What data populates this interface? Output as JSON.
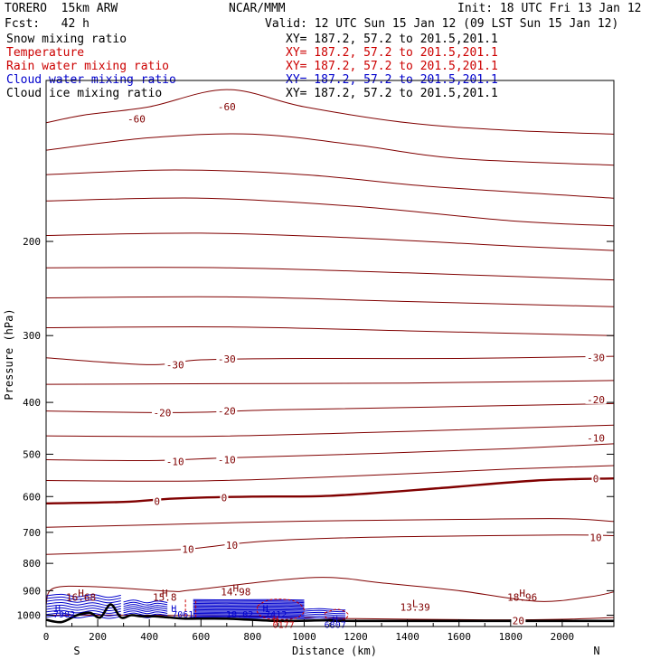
{
  "header": {
    "model": "TORERO  15km ARW",
    "center": "NCAR/MMM",
    "init": "Init: 18 UTC Fri 13 Jan 12",
    "fcst": "Fcst:   42 h",
    "valid": "Valid: 12 UTC Sun 15 Jan 12 (09 LST Sun 15 Jan 12)"
  },
  "legend": [
    {
      "name": "Snow mixing ratio",
      "xy": "XY= 187.2, 57.2 to 201.5,201.1",
      "color": "#000000"
    },
    {
      "name": "Temperature",
      "xy": "XY= 187.2, 57.2 to 201.5,201.1",
      "color": "#cc0000"
    },
    {
      "name": "Rain water mixing ratio",
      "xy": "XY= 187.2, 57.2 to 201.5,201.1",
      "color": "#cc0000"
    },
    {
      "name": "Cloud water mixing ratio",
      "xy": "XY= 187.2, 57.2 to 201.5,201.1",
      "color": "#0000cc"
    },
    {
      "name": "Cloud ice mixing ratio",
      "xy": "XY= 187.2, 57.2 to 201.5,201.1",
      "color": "#000000"
    }
  ],
  "colors": {
    "temperature": "#800000",
    "cloud_water": "#0000cc",
    "rain": "#cc0000",
    "snow": "#000000"
  },
  "chart_data": {
    "type": "contour",
    "xlabel": "Distance (km)",
    "ylabel": "Pressure (hPa)",
    "xlim": [
      0,
      2200
    ],
    "ylim": [
      1050,
      100
    ],
    "y_scale": "log",
    "x_ticks": [
      0,
      200,
      400,
      600,
      800,
      1000,
      1200,
      1400,
      1600,
      1800,
      2000
    ],
    "x_tick_labels": [
      "0",
      "200",
      "400",
      "600",
      "800",
      "1000",
      "1200",
      "1400",
      "1600",
      "1800",
      "2000"
    ],
    "y_ticks": [
      200,
      300,
      400,
      500,
      600,
      700,
      800,
      900,
      1000
    ],
    "y_tick_labels": [
      "200",
      "300",
      "400",
      "500",
      "600",
      "700",
      "800",
      "900",
      "1000"
    ],
    "end_labels": {
      "left": "S",
      "right": "N"
    },
    "isotherms": [
      {
        "value": -60,
        "points": [
          [
            0,
            120
          ],
          [
            150,
            116
          ],
          [
            400,
            112
          ],
          [
            700,
            104
          ],
          [
            1000,
            112
          ],
          [
            1400,
            120
          ],
          [
            1800,
            124
          ],
          [
            2200,
            126
          ]
        ]
      },
      {
        "value": -55,
        "points": [
          [
            0,
            135
          ],
          [
            400,
            128
          ],
          [
            800,
            126
          ],
          [
            1200,
            132
          ],
          [
            1600,
            140
          ],
          [
            2200,
            144
          ]
        ]
      },
      {
        "value": -50,
        "points": [
          [
            0,
            150
          ],
          [
            500,
            147
          ],
          [
            1000,
            150
          ],
          [
            1500,
            158
          ],
          [
            2200,
            166
          ]
        ]
      },
      {
        "value": -45,
        "points": [
          [
            0,
            168
          ],
          [
            600,
            166
          ],
          [
            1200,
            172
          ],
          [
            1800,
            183
          ],
          [
            2200,
            187
          ]
        ]
      },
      {
        "value": -40,
        "points": [
          [
            0,
            195
          ],
          [
            600,
            193
          ],
          [
            1200,
            197
          ],
          [
            1800,
            204
          ],
          [
            2200,
            208
          ]
        ]
      },
      {
        "value": -37,
        "points": [
          [
            0,
            224
          ],
          [
            700,
            224
          ],
          [
            1400,
            229
          ],
          [
            2200,
            236
          ]
        ]
      },
      {
        "value": -35,
        "points": [
          [
            0,
            255
          ],
          [
            700,
            254
          ],
          [
            1400,
            259
          ],
          [
            2200,
            265
          ]
        ]
      },
      {
        "value": -32,
        "points": [
          [
            0,
            290
          ],
          [
            700,
            289
          ],
          [
            1400,
            294
          ],
          [
            2200,
            300
          ]
        ]
      },
      {
        "value": -30,
        "points": [
          [
            0,
            330
          ],
          [
            400,
            340
          ],
          [
            600,
            333
          ],
          [
            1000,
            331
          ],
          [
            1600,
            331
          ],
          [
            2200,
            328
          ]
        ]
      },
      {
        "value": -25,
        "points": [
          [
            0,
            370
          ],
          [
            700,
            369
          ],
          [
            1400,
            368
          ],
          [
            2200,
            364
          ]
        ]
      },
      {
        "value": -20,
        "points": [
          [
            0,
            415
          ],
          [
            500,
            418
          ],
          [
            900,
            413
          ],
          [
            1500,
            408
          ],
          [
            2200,
            402
          ]
        ]
      },
      {
        "value": -15,
        "points": [
          [
            0,
            462
          ],
          [
            600,
            463
          ],
          [
            1200,
            456
          ],
          [
            1800,
            447
          ],
          [
            2200,
            441
          ]
        ]
      },
      {
        "value": -10,
        "points": [
          [
            0,
            512
          ],
          [
            400,
            514
          ],
          [
            700,
            508
          ],
          [
            1300,
            498
          ],
          [
            1800,
            488
          ],
          [
            2200,
            478
          ]
        ]
      },
      {
        "value": -5,
        "points": [
          [
            0,
            560
          ],
          [
            600,
            561
          ],
          [
            1200,
            549
          ],
          [
            1800,
            533
          ],
          [
            2200,
            525
          ]
        ]
      },
      {
        "value": 0,
        "points": [
          [
            0,
            618
          ],
          [
            300,
            614
          ],
          [
            500,
            605
          ],
          [
            800,
            600
          ],
          [
            1100,
            598
          ],
          [
            1500,
            580
          ],
          [
            1900,
            560
          ],
          [
            2200,
            555
          ]
        ]
      },
      {
        "value": 5,
        "points": [
          [
            0,
            685
          ],
          [
            400,
            678
          ],
          [
            800,
            670
          ],
          [
            1200,
            665
          ],
          [
            1600,
            662
          ],
          [
            2000,
            660
          ],
          [
            2200,
            668
          ]
        ]
      },
      {
        "value": 10,
        "points": [
          [
            0,
            770
          ],
          [
            350,
            760
          ],
          [
            550,
            752
          ],
          [
            800,
            730
          ],
          [
            1100,
            718
          ],
          [
            1500,
            712
          ],
          [
            2000,
            708
          ],
          [
            2200,
            710
          ]
        ]
      },
      {
        "value": 15,
        "points": [
          [
            0,
            955
          ],
          [
            30,
            890
          ],
          [
            200,
            885
          ],
          [
            480,
            902
          ],
          [
            560,
            898
          ],
          [
            900,
            860
          ],
          [
            1100,
            850
          ],
          [
            1300,
            870
          ],
          [
            1600,
            900
          ],
          [
            1900,
            942
          ],
          [
            2100,
            925
          ],
          [
            2200,
            905
          ]
        ]
      },
      {
        "value": 20,
        "points": [
          [
            0,
            1000
          ],
          [
            400,
            1000
          ],
          [
            800,
            1005
          ],
          [
            1200,
            1015
          ],
          [
            1700,
            1020
          ],
          [
            2000,
            1018
          ],
          [
            2200,
            1010
          ]
        ]
      }
    ],
    "isotherm_labels": [
      {
        "text": "-60",
        "x": 350,
        "p": 118
      },
      {
        "text": "-60",
        "x": 700,
        "p": 112
      },
      {
        "text": "-30",
        "x": 500,
        "p": 340
      },
      {
        "text": "-30",
        "x": 700,
        "p": 332
      },
      {
        "text": "-30",
        "x": 2130,
        "p": 330
      },
      {
        "text": "-20",
        "x": 450,
        "p": 418
      },
      {
        "text": "-20",
        "x": 700,
        "p": 415
      },
      {
        "text": "-20",
        "x": 2130,
        "p": 395
      },
      {
        "text": "-10",
        "x": 500,
        "p": 516
      },
      {
        "text": "-10",
        "x": 700,
        "p": 512
      },
      {
        "text": "-10",
        "x": 2130,
        "p": 466
      },
      {
        "text": "0",
        "x": 430,
        "p": 612
      },
      {
        "text": "0",
        "x": 690,
        "p": 603
      },
      {
        "text": "0",
        "x": 2130,
        "p": 556
      },
      {
        "text": "10",
        "x": 550,
        "p": 752
      },
      {
        "text": "10",
        "x": 720,
        "p": 740
      },
      {
        "text": "10",
        "x": 2130,
        "p": 715
      },
      {
        "text": "20",
        "x": 1830,
        "p": 1024
      }
    ],
    "markers": [
      {
        "kind": "H",
        "x": 135,
        "p": 910,
        "value": "16.68"
      },
      {
        "kind": "H",
        "x": 460,
        "p": 910,
        "value": "15.8"
      },
      {
        "kind": "H",
        "x": 735,
        "p": 890,
        "value": "14.98"
      },
      {
        "kind": "H",
        "x": 1845,
        "p": 910,
        "value": "18.96"
      },
      {
        "kind": "L",
        "x": 1430,
        "p": 950,
        "value": "13.39"
      }
    ],
    "cloud_markers": [
      {
        "text": "H",
        "x": 45,
        "p": 970
      },
      {
        "text": "7902",
        "x": 70,
        "p": 995
      },
      {
        "text": "H",
        "x": 495,
        "p": 970
      },
      {
        "text": "7061",
        "x": 530,
        "p": 995
      },
      {
        "text": "H",
        "x": 850,
        "p": 970
      },
      {
        "text": ".7412",
        "x": 880,
        "p": 995
      },
      {
        "text": "10.02",
        "x": 750,
        "p": 995
      },
      {
        "text": "H",
        "x": 1120,
        "p": 1015
      },
      {
        "text": "6807",
        "x": 1120,
        "p": 1040
      }
    ],
    "rain_markers": [
      {
        "text": "H",
        "x": 890,
        "p": 1015
      },
      {
        "text": "0177",
        "x": 920,
        "p": 1040
      }
    ],
    "terrain": [
      [
        0,
        1020
      ],
      [
        60,
        1030
      ],
      [
        120,
        1000
      ],
      [
        170,
        990
      ],
      [
        210,
        1010
      ],
      [
        250,
        955
      ],
      [
        290,
        1010
      ],
      [
        330,
        1000
      ],
      [
        370,
        1005
      ],
      [
        420,
        1005
      ],
      [
        480,
        1010
      ],
      [
        540,
        1015
      ],
      [
        700,
        1015
      ],
      [
        900,
        1025
      ],
      [
        1100,
        1022
      ],
      [
        1200,
        1025
      ],
      [
        2200,
        1025
      ]
    ]
  }
}
